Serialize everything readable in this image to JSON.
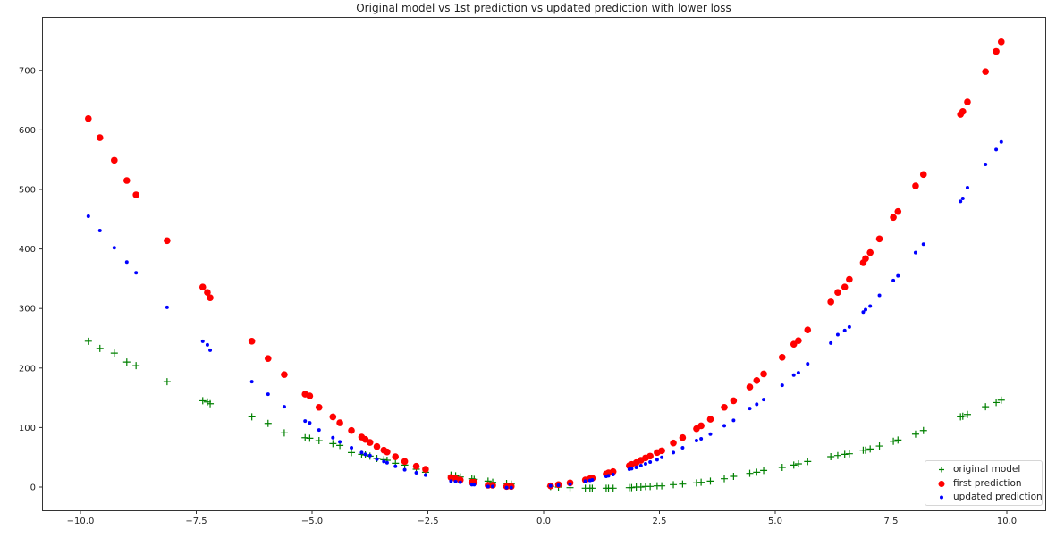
{
  "chart_data": {
    "type": "scatter",
    "title": "Original model vs 1st prediction vs updated prediction with lower loss",
    "xlabel": "",
    "ylabel": "",
    "xlim": [
      -10.95,
      10.95
    ],
    "ylim": [
      -40,
      790
    ],
    "xticks": [
      -10.0,
      -7.5,
      -5.0,
      -2.5,
      0.0,
      2.5,
      5.0,
      7.5,
      10.0
    ],
    "xtick_labels": [
      "−10.0",
      "−7.5",
      "−5.0",
      "−2.5",
      "0.0",
      "2.5",
      "5.0",
      "7.5",
      "10.0"
    ],
    "yticks": [
      0,
      100,
      200,
      300,
      400,
      500,
      600,
      700
    ],
    "ytick_labels": [
      "0",
      "100",
      "200",
      "300",
      "400",
      "500",
      "600",
      "700"
    ],
    "grid": false,
    "legend_position": "lower right",
    "x": [
      -9.83,
      -9.58,
      -9.27,
      -9.0,
      -8.8,
      -8.13,
      -7.36,
      -7.26,
      -7.2,
      -6.3,
      -5.95,
      -5.6,
      -5.15,
      -5.05,
      -4.85,
      -4.55,
      -4.4,
      -4.15,
      -3.93,
      -3.85,
      -3.75,
      -3.6,
      -3.45,
      -3.38,
      -3.2,
      -3.0,
      -2.75,
      -2.55,
      -2.0,
      -1.9,
      -1.8,
      -1.55,
      -1.5,
      -1.2,
      -1.1,
      -0.8,
      -0.7,
      0.15,
      0.32,
      0.57,
      0.9,
      1.0,
      1.05,
      1.35,
      1.4,
      1.5,
      1.85,
      1.9,
      2.0,
      2.1,
      2.2,
      2.3,
      2.45,
      2.55,
      2.8,
      3.0,
      3.3,
      3.4,
      3.6,
      3.9,
      4.1,
      4.45,
      4.6,
      4.75,
      5.15,
      5.4,
      5.5,
      5.7,
      6.2,
      6.35,
      6.5,
      6.6,
      6.9,
      6.95,
      7.05,
      7.25,
      7.55,
      7.65,
      8.03,
      8.2,
      9.0,
      9.05,
      9.15,
      9.54,
      9.77,
      9.88
    ],
    "series": [
      {
        "name": "original model",
        "marker": "+",
        "color": "#008000",
        "values": [
          245,
          233,
          225,
          210,
          204,
          177,
          145,
          143,
          140,
          118,
          107,
          91,
          83,
          82,
          78,
          73,
          70,
          58,
          55,
          54,
          52,
          48,
          46,
          45,
          40,
          37,
          30,
          25,
          20,
          19,
          17,
          14,
          13,
          10,
          8,
          6,
          5,
          1,
          0,
          -1,
          -2,
          -2,
          -2,
          -2,
          -2,
          -2,
          -1,
          -1,
          0,
          0,
          1,
          1,
          2,
          2,
          4,
          5,
          7,
          8,
          10,
          14,
          18,
          23,
          25,
          28,
          33,
          37,
          39,
          43,
          51,
          53,
          55,
          56,
          62,
          62,
          64,
          69,
          77,
          79,
          89,
          95,
          118,
          119,
          122,
          135,
          142,
          146
        ]
      },
      {
        "name": "first prediction",
        "marker": "o",
        "color": "#ff0000",
        "values": [
          619,
          587,
          549,
          515,
          491,
          414,
          336,
          327,
          318,
          245,
          216,
          189,
          156,
          153,
          134,
          118,
          108,
          95,
          84,
          80,
          75,
          68,
          62,
          59,
          51,
          43,
          35,
          30,
          16,
          14,
          12,
          8,
          8,
          3,
          3,
          1,
          1,
          2,
          4,
          7,
          12,
          14,
          15,
          22,
          24,
          26,
          36,
          38,
          41,
          45,
          49,
          52,
          58,
          61,
          74,
          83,
          98,
          103,
          114,
          134,
          145,
          168,
          179,
          190,
          218,
          240,
          246,
          264,
          311,
          327,
          336,
          349,
          377,
          384,
          394,
          417,
          453,
          463,
          506,
          525,
          626,
          631,
          647,
          698,
          732,
          748
        ]
      },
      {
        "name": "updated prediction",
        "marker": ".",
        "color": "#0000ff",
        "values": [
          455,
          431,
          402,
          378,
          360,
          302,
          245,
          239,
          230,
          177,
          156,
          135,
          111,
          108,
          96,
          83,
          76,
          66,
          58,
          55,
          53,
          47,
          43,
          41,
          35,
          29,
          24,
          20,
          10,
          9,
          8,
          4,
          4,
          1,
          1,
          -1,
          -1,
          2,
          3,
          5,
          10,
          11,
          12,
          18,
          19,
          21,
          30,
          31,
          33,
          36,
          39,
          42,
          46,
          50,
          58,
          66,
          78,
          81,
          89,
          103,
          112,
          132,
          139,
          147,
          171,
          188,
          192,
          207,
          242,
          256,
          263,
          269,
          294,
          298,
          304,
          322,
          347,
          355,
          394,
          408,
          480,
          485,
          503,
          542,
          567,
          580
        ]
      }
    ]
  },
  "title": "Original model vs 1st prediction vs updated prediction with lower loss",
  "legend": {
    "items": [
      {
        "label": "original model",
        "marker": "plus",
        "color": "#008000"
      },
      {
        "label": "first prediction",
        "marker": "large-dot",
        "color": "#ff0000"
      },
      {
        "label": "updated prediction",
        "marker": "small-dot",
        "color": "#0000ff"
      }
    ]
  }
}
